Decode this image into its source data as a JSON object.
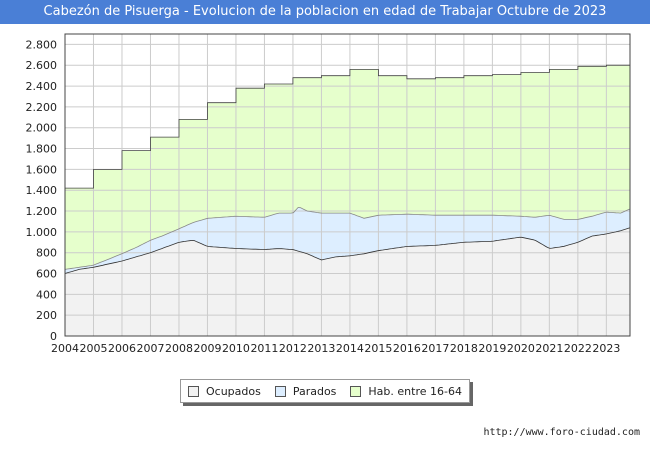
{
  "chart_data": {
    "type": "area",
    "title": "Cabezón de Pisuerga - Evolucion de la poblacion en edad de Trabajar Octubre de 2023",
    "xlabel": "",
    "ylabel": "",
    "ylim": [
      0,
      2900
    ],
    "xlim": [
      2004,
      2023.83
    ],
    "grid": true,
    "y_ticks": [
      0,
      200,
      400,
      600,
      800,
      1000,
      1200,
      1400,
      1600,
      1800,
      2000,
      2200,
      2400,
      2600,
      2800
    ],
    "y_tick_labels": [
      "0",
      "200",
      "400",
      "600",
      "800",
      "1.000",
      "1.200",
      "1.400",
      "1.600",
      "1.800",
      "2.000",
      "2.200",
      "2.400",
      "2.600",
      "2.800"
    ],
    "x_ticks": [
      2004,
      2005,
      2006,
      2007,
      2008,
      2009,
      2010,
      2011,
      2012,
      2013,
      2014,
      2015,
      2016,
      2017,
      2018,
      2019,
      2020,
      2021,
      2022,
      2023
    ],
    "x_tick_labels": [
      "2004",
      "2005",
      "2006",
      "2007",
      "2008",
      "2009",
      "2010",
      "2011",
      "2012",
      "2013",
      "2014",
      "2015",
      "2016",
      "2017",
      "2018",
      "2019",
      "2020",
      "2021",
      "2022",
      "2023"
    ],
    "legend_position": "bottom-center",
    "colors": {
      "hab_fill": "#e6ffcc",
      "hab_line": "#444444",
      "parados_fill": "#ddeeff",
      "parados_line": "#888888",
      "ocupados_fill": "#f2f2f2",
      "ocupados_line": "#333333",
      "grid": "#cccccc"
    },
    "series": [
      {
        "name": "Hab. entre 16-64",
        "x": [
          2004,
          2005,
          2006,
          2007,
          2008,
          2009,
          2010,
          2011,
          2012,
          2013,
          2014,
          2015,
          2016,
          2017,
          2018,
          2019,
          2020,
          2021,
          2022,
          2023
        ],
        "values": [
          1420,
          1600,
          1780,
          1910,
          2080,
          2240,
          2380,
          2420,
          2480,
          2500,
          2560,
          2500,
          2470,
          2480,
          2500,
          2510,
          2530,
          2560,
          2590,
          2600
        ]
      },
      {
        "name": "Parados",
        "x": [
          2004,
          2005,
          2006,
          2006.5,
          2007,
          2007.5,
          2008,
          2008.5,
          2009,
          2010,
          2011,
          2011.5,
          2012,
          2012.2,
          2012.5,
          2013,
          2014,
          2014.5,
          2015,
          2016,
          2017,
          2018,
          2019,
          2020,
          2020.5,
          2021,
          2021.5,
          2022,
          2022.5,
          2023,
          2023.5,
          2023.83
        ],
        "values": [
          640,
          680,
          790,
          850,
          920,
          970,
          1030,
          1090,
          1130,
          1150,
          1140,
          1180,
          1180,
          1240,
          1200,
          1180,
          1180,
          1130,
          1160,
          1170,
          1160,
          1160,
          1160,
          1150,
          1140,
          1160,
          1120,
          1120,
          1150,
          1190,
          1180,
          1220
        ]
      },
      {
        "name": "Ocupados",
        "x": [
          2004,
          2004.5,
          2005,
          2005.5,
          2006,
          2006.5,
          2007,
          2007.5,
          2008,
          2008.5,
          2009,
          2010,
          2011,
          2011.5,
          2012,
          2012.5,
          2013,
          2013.5,
          2014,
          2014.5,
          2015,
          2016,
          2017,
          2018,
          2019,
          2020,
          2020.5,
          2021,
          2021.5,
          2022,
          2022.5,
          2023,
          2023.5,
          2023.83
        ],
        "values": [
          600,
          640,
          660,
          690,
          720,
          760,
          800,
          850,
          900,
          920,
          860,
          840,
          830,
          840,
          830,
          790,
          730,
          760,
          770,
          790,
          820,
          860,
          870,
          900,
          910,
          950,
          920,
          840,
          860,
          900,
          960,
          980,
          1010,
          1040
        ]
      }
    ],
    "legend": [
      "Ocupados",
      "Parados",
      "Hab. entre 16-64"
    ]
  },
  "source": "http://www.foro-ciudad.com"
}
